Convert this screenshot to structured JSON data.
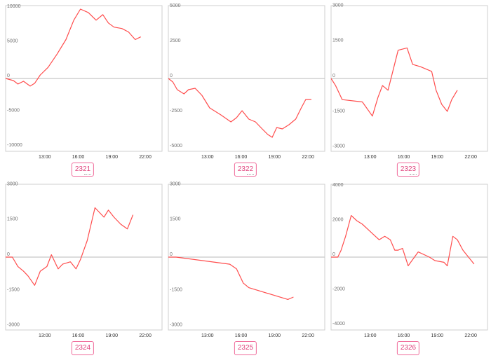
{
  "colors": {
    "line": "#ff4d4d",
    "badge_border": "#f06a9a",
    "badge_text": "#e0447e"
  },
  "chart_data": [
    {
      "type": "line",
      "badge": "2321",
      "ylim": [
        -10500,
        10500
      ],
      "yticks": [
        10000,
        5000,
        0,
        -5000,
        -10000
      ],
      "yticks_text": [
        "10000",
        "5000",
        "0",
        "-5000",
        "-10000"
      ],
      "xlim": [
        9.5,
        23.5
      ],
      "xticks": [
        13,
        16,
        19,
        22
      ],
      "xticks_text": [
        "13:00",
        "16:00",
        "19:00",
        "22:00"
      ],
      "series": [
        {
          "x": [
            9.5,
            10.2,
            10.6,
            11.1,
            11.7,
            12.1,
            12.6,
            13.3,
            14.1,
            14.9,
            15.6,
            16.2,
            16.9,
            17.6,
            18.2,
            18.7,
            19.2,
            19.9,
            20.5,
            21.1,
            21.6
          ],
          "y": [
            0,
            -300,
            -800,
            -400,
            -1100,
            -700,
            500,
            1600,
            3500,
            5600,
            8400,
            10000,
            9500,
            8400,
            9200,
            8000,
            7400,
            7200,
            6700,
            5600,
            6000
          ]
        }
      ]
    },
    {
      "type": "line",
      "badge": "2322",
      "ylim": [
        -5200,
        5200
      ],
      "yticks": [
        5000,
        2500,
        0,
        -2500,
        -5000
      ],
      "yticks_text": [
        "5000",
        "2500",
        "0",
        "-2500",
        "-5000"
      ],
      "xlim": [
        9.5,
        23.5
      ],
      "xticks": [
        13,
        16,
        19,
        22
      ],
      "xticks_text": [
        "13:00",
        "16:00",
        "19:00",
        "22:00"
      ],
      "series": [
        {
          "x": [
            9.5,
            9.9,
            10.3,
            10.9,
            11.3,
            11.9,
            12.5,
            13.2,
            14.2,
            15.1,
            15.6,
            16.1,
            16.7,
            17.3,
            17.9,
            18.4,
            18.8,
            19.2,
            19.7,
            20.3,
            20.9,
            21.4,
            21.8,
            22.3
          ],
          "y": [
            0,
            -250,
            -800,
            -1100,
            -800,
            -700,
            -1200,
            -2100,
            -2600,
            -3100,
            -2800,
            -2300,
            -2900,
            -3100,
            -3600,
            -4000,
            -4200,
            -3500,
            -3600,
            -3300,
            -2900,
            -2100,
            -1500,
            -1500
          ]
        }
      ]
    },
    {
      "type": "line",
      "badge": "2323",
      "ylim": [
        -3100,
        3100
      ],
      "yticks": [
        3000,
        1500,
        0,
        -1500,
        -3000
      ],
      "yticks_text": [
        "3000",
        "1500",
        "0",
        "-1500",
        "-3000"
      ],
      "xlim": [
        9.5,
        23.5
      ],
      "xticks": [
        13,
        16,
        19,
        22
      ],
      "xticks_text": [
        "13:00",
        "16:00",
        "19:00",
        "22:00"
      ],
      "series": [
        {
          "x": [
            9.5,
            9.9,
            10.5,
            12.3,
            13.2,
            13.7,
            14.1,
            14.6,
            15.5,
            16.3,
            16.8,
            17.5,
            18.5,
            18.9,
            19.4,
            19.9,
            20.3,
            20.8
          ],
          "y": [
            0,
            -300,
            -900,
            -1000,
            -1600,
            -800,
            -300,
            -500,
            1200,
            1300,
            600,
            500,
            300,
            -500,
            -1100,
            -1400,
            -900,
            -500
          ]
        }
      ]
    },
    {
      "type": "line",
      "badge": "2324",
      "ylim": [
        -3100,
        3100
      ],
      "yticks": [
        3000,
        1500,
        0,
        -1500,
        -3000
      ],
      "yticks_text": [
        "3000",
        "1500",
        "0",
        "-1500",
        "-3000"
      ],
      "xlim": [
        9.5,
        23.5
      ],
      "xticks": [
        13,
        16,
        19,
        22
      ],
      "xticks_text": [
        "13:00",
        "16:00",
        "19:00",
        "22:00"
      ],
      "series": [
        {
          "x": [
            9.5,
            10.1,
            10.6,
            11.1,
            11.5,
            12.1,
            12.6,
            13.2,
            13.6,
            14.2,
            14.6,
            15.3,
            15.8,
            16.2,
            16.8,
            17.5,
            18.3,
            18.7,
            19.2,
            19.8,
            20.4,
            20.9
          ],
          "y": [
            0,
            0,
            -400,
            -600,
            -800,
            -1200,
            -600,
            -400,
            100,
            -500,
            -300,
            -200,
            -500,
            -100,
            700,
            2100,
            1700,
            2000,
            1700,
            1400,
            1200,
            1800
          ]
        }
      ]
    },
    {
      "type": "line",
      "badge": "2325",
      "ylim": [
        -3100,
        3100
      ],
      "yticks": [
        3000,
        1500,
        0,
        -1500,
        -3000
      ],
      "yticks_text": [
        "3000",
        "1500",
        "0",
        "-1500",
        "-3000"
      ],
      "xlim": [
        9.5,
        23.5
      ],
      "xticks": [
        13,
        16,
        19,
        22
      ],
      "xticks_text": [
        "13:00",
        "16:00",
        "19:00",
        "22:00"
      ],
      "series": [
        {
          "x": [
            9.5,
            10.2,
            15.0,
            15.6,
            16.2,
            16.7,
            20.2,
            20.7
          ],
          "y": [
            0,
            0,
            -300,
            -500,
            -1100,
            -1300,
            -1800,
            -1700
          ]
        }
      ]
    },
    {
      "type": "line",
      "badge": "2326",
      "ylim": [
        -4200,
        4200
      ],
      "yticks": [
        4000,
        2000,
        0,
        -2000,
        -4000
      ],
      "yticks_text": [
        "4000",
        "2000",
        "0",
        "-2000",
        "-4000"
      ],
      "xlim": [
        9.5,
        23.5
      ],
      "xticks": [
        13,
        16,
        19,
        22
      ],
      "xticks_text": [
        "13:00",
        "16:00",
        "19:00",
        "22:00"
      ],
      "series": [
        {
          "x": [
            9.5,
            10.1,
            10.4,
            10.8,
            11.3,
            11.8,
            12.3,
            12.8,
            13.3,
            13.8,
            14.3,
            14.8,
            15.2,
            15.5,
            15.9,
            16.4,
            17.3,
            18.3,
            18.8,
            19.6,
            19.9,
            20.4,
            20.8,
            21.3,
            21.8,
            22.3
          ],
          "y": [
            0,
            0,
            400,
            1200,
            2400,
            2100,
            1900,
            1600,
            1300,
            1000,
            1200,
            1000,
            400,
            400,
            500,
            -500,
            300,
            0,
            -200,
            -300,
            -500,
            1200,
            1000,
            400,
            0,
            -400
          ]
        }
      ]
    }
  ]
}
